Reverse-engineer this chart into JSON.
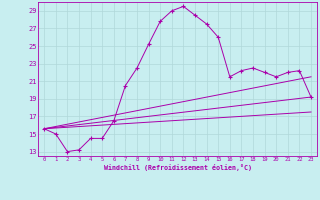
{
  "xlabel": "Windchill (Refroidissement éolien,°C)",
  "bg_color": "#c8eef0",
  "grid_color": "#b0d8da",
  "line_color": "#aa00aa",
  "xlim": [
    -0.5,
    23.5
  ],
  "ylim": [
    12.5,
    30.0
  ],
  "yticks": [
    13,
    15,
    17,
    19,
    21,
    23,
    25,
    27,
    29
  ],
  "xticks": [
    0,
    1,
    2,
    3,
    4,
    5,
    6,
    7,
    8,
    9,
    10,
    11,
    12,
    13,
    14,
    15,
    16,
    17,
    18,
    19,
    20,
    21,
    22,
    23
  ],
  "series": [
    {
      "x": [
        0,
        1,
        2,
        3,
        4,
        5,
        6,
        7,
        8,
        9,
        10,
        11,
        12,
        13,
        14,
        15,
        16,
        17,
        18,
        19,
        20,
        21,
        22,
        23
      ],
      "y": [
        15.6,
        15.0,
        13.0,
        13.2,
        14.5,
        14.5,
        16.5,
        20.5,
        22.5,
        25.2,
        27.8,
        29.0,
        29.5,
        28.5,
        27.5,
        26.0,
        21.5,
        22.2,
        22.5,
        22.0,
        21.5,
        22.0,
        22.2,
        19.2
      ],
      "marker": true
    },
    {
      "x": [
        0,
        23
      ],
      "y": [
        15.6,
        19.2
      ],
      "marker": false
    },
    {
      "x": [
        0,
        23
      ],
      "y": [
        15.6,
        17.5
      ],
      "marker": false
    },
    {
      "x": [
        0,
        23
      ],
      "y": [
        15.6,
        21.5
      ],
      "marker": false
    }
  ]
}
